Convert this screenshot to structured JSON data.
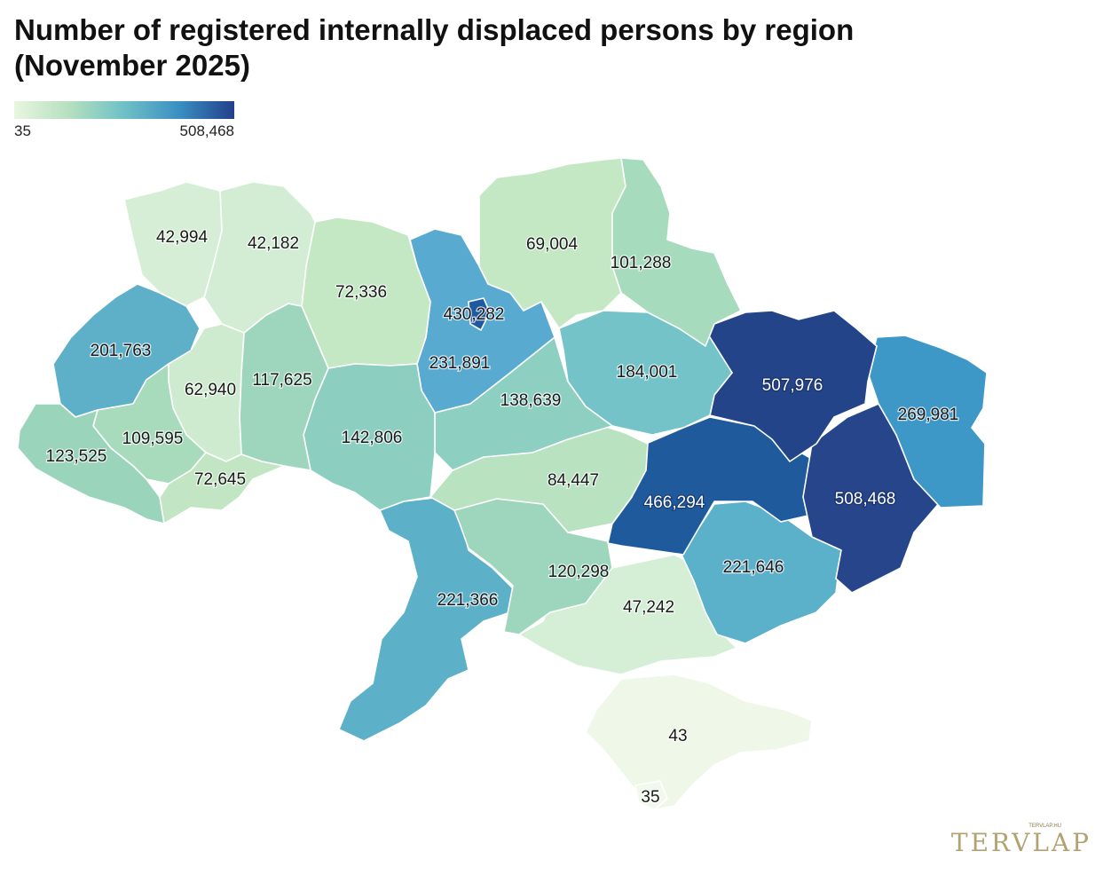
{
  "title": "Number of registered internally displaced persons by region (November 2025)",
  "legend": {
    "min_label": "35",
    "max_label": "508,468",
    "min": 35,
    "max": 508468
  },
  "colors": {
    "low": "#e9f6df",
    "mid": "#6fc0c7",
    "high": "#233f8c"
  },
  "regions": {
    "volyn": "42,994",
    "rivne": "42,182",
    "zhytomyr": "72,336",
    "chernihiv": "69,004",
    "sumy": "101,288",
    "kyiv_city": "430,282",
    "lviv": "201,763",
    "ternopil": "62,940",
    "khmelnytskyi": "117,625",
    "kyiv_oblast": "231,891",
    "poltava": "184,001",
    "kharkiv": "507,976",
    "luhansk": "269,981",
    "cherkasy": "138,639",
    "vinnytsia": "142,806",
    "zakarpattia": "123,525",
    "ivano_frankivsk": "109,595",
    "chernivtsi": "72,645",
    "kirovohrad": "84,447",
    "dnipropetrovsk": "466,294",
    "donetsk": "508,468",
    "zaporizhzhia": "221,646",
    "mykolaiv": "120,298",
    "odesa": "221,366",
    "kherson": "47,242",
    "crimea": "43",
    "sevastopol": "35"
  },
  "logo": {
    "text": "TERVLAP",
    "small": "TERVLAP.HU"
  }
}
